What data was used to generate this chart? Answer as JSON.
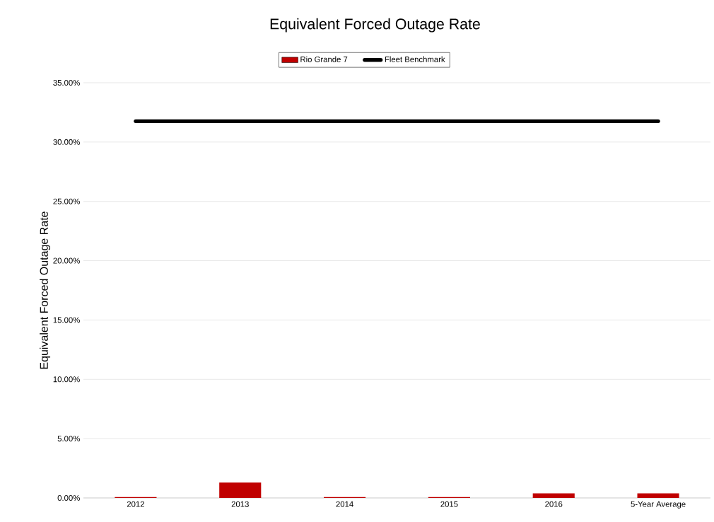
{
  "chart_data": {
    "type": "bar",
    "title": "Equivalent Forced Outage Rate",
    "ylabel": "Equivalent Forced Outage Rate",
    "categories": [
      "2012",
      "2013",
      "2014",
      "2015",
      "2016",
      "5-Year Average"
    ],
    "series": [
      {
        "name": "Rio Grande 7",
        "color": "#c00000",
        "values": [
          0.08,
          1.29,
          0.08,
          0.08,
          0.38,
          0.38
        ]
      },
      {
        "name": "Fleet Benchmark",
        "type": "line",
        "color": "#000000",
        "values": [
          31.76,
          31.76,
          31.76,
          31.76,
          31.76,
          31.76
        ],
        "marker": "none",
        "line_style": "solid"
      }
    ],
    "ylim": [
      0,
      35
    ],
    "yticks": [
      {
        "value": 0,
        "label": "0.00%"
      },
      {
        "value": 5,
        "label": "5.00%"
      },
      {
        "value": 10,
        "label": "10.00%"
      },
      {
        "value": 15,
        "label": "15.00%"
      },
      {
        "value": 20,
        "label": "20.00%"
      },
      {
        "value": 25,
        "label": "25.00%"
      },
      {
        "value": 30,
        "label": "30.00%"
      },
      {
        "value": 35,
        "label": "35.00%"
      }
    ],
    "grid": "y",
    "legend": "top"
  }
}
